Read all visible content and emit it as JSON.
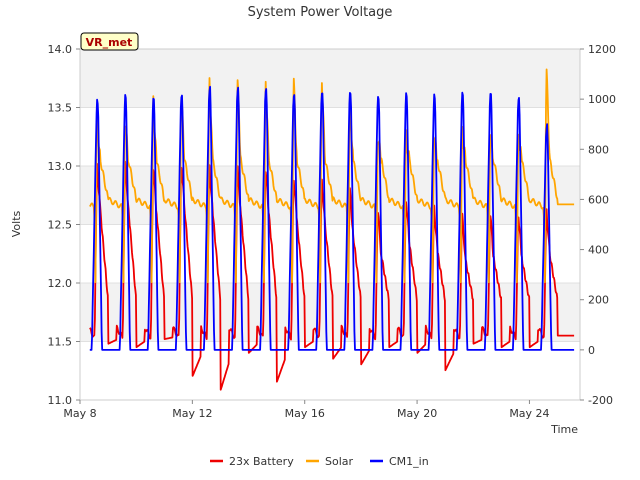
{
  "chart_data": {
    "type": "line",
    "title": "System Power Voltage",
    "xlabel": "Time",
    "ylabel": "Volts",
    "annotation": "VR_met",
    "x_range_days": [
      8,
      25.8
    ],
    "x_ticks": [
      {
        "day": 8,
        "label": "May 8"
      },
      {
        "day": 12,
        "label": "May 12"
      },
      {
        "day": 16,
        "label": "May 16"
      },
      {
        "day": 20,
        "label": "May 20"
      },
      {
        "day": 24,
        "label": "May 24"
      }
    ],
    "ylim_left": [
      11.0,
      14.0
    ],
    "yticks_left": [
      "11.0",
      "11.5",
      "12.0",
      "12.5",
      "13.0",
      "13.5",
      "14.0"
    ],
    "ylim_right": [
      -200,
      1200
    ],
    "yticks_right": [
      "-200",
      "0",
      "200",
      "400",
      "600",
      "800",
      "1000",
      "1200"
    ],
    "grid": true,
    "legend_position": "bottom-center",
    "series": [
      {
        "name": "23x Battery",
        "axis": "left",
        "color": "#ee0000",
        "base": 11.55,
        "day_peaks": [
          13.03,
          13.05,
          13.02,
          13.04,
          13.02,
          13.01,
          13.0,
          12.93,
          12.9,
          12.82,
          12.65,
          12.75,
          12.68,
          12.6,
          12.62,
          12.62,
          12.65
        ],
        "night_lows": [
          11.48,
          11.45,
          11.52,
          11.2,
          11.08,
          11.4,
          11.15,
          11.45,
          11.35,
          11.3,
          11.45,
          11.4,
          11.25,
          11.48,
          11.45,
          11.45,
          11.5
        ]
      },
      {
        "name": "Solar",
        "axis": "right",
        "color": "#ffa500",
        "base": 580,
        "day_peaks": [
          940,
          930,
          1010,
          1040,
          1100,
          1110,
          1100,
          1100,
          1110,
          1010,
          860,
          860,
          870,
          880,
          870,
          860,
          1150
        ]
      },
      {
        "name": "CM1_in",
        "axis": "right",
        "color": "#0000ff",
        "base": 0,
        "day_peaks": [
          1000,
          1020,
          1010,
          1020,
          1050,
          1050,
          1050,
          1030,
          1040,
          1040,
          1020,
          1030,
          1020,
          1030,
          1030,
          1010,
          900
        ]
      }
    ],
    "legend": [
      "23x Battery",
      "Solar",
      "CM1_in"
    ]
  }
}
